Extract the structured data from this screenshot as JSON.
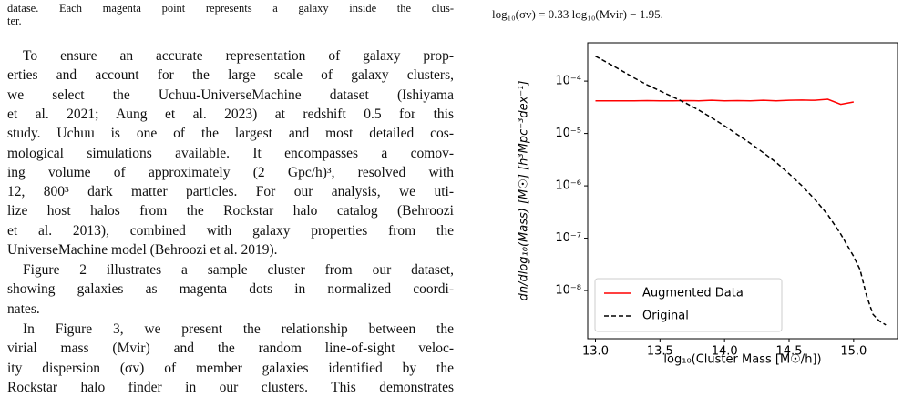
{
  "caption_fragment": [
    "datase. Each magenta point represents a galaxy inside the clus-",
    "ter."
  ],
  "paragraphs": [
    [
      "To ensure an accurate representation of galaxy prop-",
      "erties and account for the large scale of galaxy clusters,",
      "we select the Uchuu-UniverseMachine dataset (Ishiyama",
      "et al. 2021; Aung et al. 2023) at redshift 0.5 for this",
      "study. Uchuu is one of the largest and most detailed cos-",
      "mological simulations available. It encompasses a comov-",
      "ing volume of approximately (2 Gpc/h)³, resolved with",
      "12, 800³ dark matter particles. For our analysis, we uti-",
      "lize host halos from the Rockstar halo catalog (Behroozi",
      "et al. 2013), combined with galaxy properties from the",
      "UniverseMachine model (Behroozi et al. 2019)."
    ],
    [
      "Figure 2 illustrates a sample cluster from our dataset,",
      "showing galaxies as magenta dots in normalized coordi-",
      "nates."
    ],
    [
      "In Figure 3, we present the relationship between the",
      "virial mass (Mvir) and the random line-of-sight veloc-",
      "ity dispersion (σv) of member galaxies identified by the",
      "Rockstar halo finder in our clusters. This demonstrates"
    ]
  ],
  "equation": "log₁₀(σv) = 0.33 log₁₀(Mvir) − 1.95.",
  "chart_data": {
    "type": "line",
    "xlabel": "log₁₀(Cluster Mass [M☉/h])",
    "ylabel": "dn/dlog₁₀(Mass) [M☉] [h³Mpc⁻³dex⁻¹]",
    "xlim": [
      12.94,
      15.34
    ],
    "ylim": [
      1.2e-09,
      0.00054
    ],
    "yscale": "log",
    "xticks": [
      {
        "value": 13,
        "label": "13.0"
      },
      {
        "value": 13.5,
        "label": "13.5"
      },
      {
        "value": 14,
        "label": "14.0"
      },
      {
        "value": 14.5,
        "label": "14.5"
      },
      {
        "value": 15,
        "label": "15.0"
      }
    ],
    "yticks": [
      {
        "value": 1e-08,
        "label": "10⁻⁸"
      },
      {
        "value": 1e-07,
        "label": "10⁻⁷"
      },
      {
        "value": 1e-06,
        "label": "10⁻⁶"
      },
      {
        "value": 1e-05,
        "label": "10⁻⁵"
      },
      {
        "value": 0.0001,
        "label": "10⁻⁴"
      }
    ],
    "legend": "lower left",
    "series": [
      {
        "name": "Augmented Data",
        "color": "#ff0000",
        "style": "solid",
        "x": [
          13.0,
          13.1,
          13.2,
          13.3,
          13.4,
          13.5,
          13.6,
          13.7,
          13.8,
          13.9,
          14.0,
          14.1,
          14.2,
          14.3,
          14.4,
          14.5,
          14.6,
          14.7,
          14.8,
          14.9,
          15.0
        ],
        "values": [
          4.2e-05,
          4.2e-05,
          4.2e-05,
          4.2e-05,
          4.25e-05,
          4.2e-05,
          4.2e-05,
          4.25e-05,
          4.2e-05,
          4.3e-05,
          4.2e-05,
          4.25e-05,
          4.2e-05,
          4.3e-05,
          4.2e-05,
          4.3e-05,
          4.35e-05,
          4.3e-05,
          4.5e-05,
          3.6e-05,
          4e-05
        ]
      },
      {
        "name": "Original",
        "color": "#000000",
        "style": "dashed",
        "x": [
          13.0,
          13.1,
          13.2,
          13.3,
          13.4,
          13.5,
          13.6,
          13.7,
          13.8,
          13.9,
          14.0,
          14.1,
          14.2,
          14.3,
          14.4,
          14.5,
          14.6,
          14.7,
          14.8,
          14.9,
          15.0,
          15.05,
          15.1,
          15.15,
          15.2,
          15.25
        ],
        "values": [
          0.0003,
          0.00022,
          0.00016,
          0.000115,
          8.5e-05,
          6.5e-05,
          5e-05,
          3.8e-05,
          2.8e-05,
          2e-05,
          1.4e-05,
          9.5e-06,
          6.5e-06,
          4.3e-06,
          2.8e-06,
          1.7e-06,
          1e-06,
          5.5e-07,
          2.8e-07,
          1.2e-07,
          4.5e-08,
          2.5e-08,
          8e-09,
          3.5e-09,
          2.6e-09,
          2.2e-09
        ]
      }
    ]
  }
}
